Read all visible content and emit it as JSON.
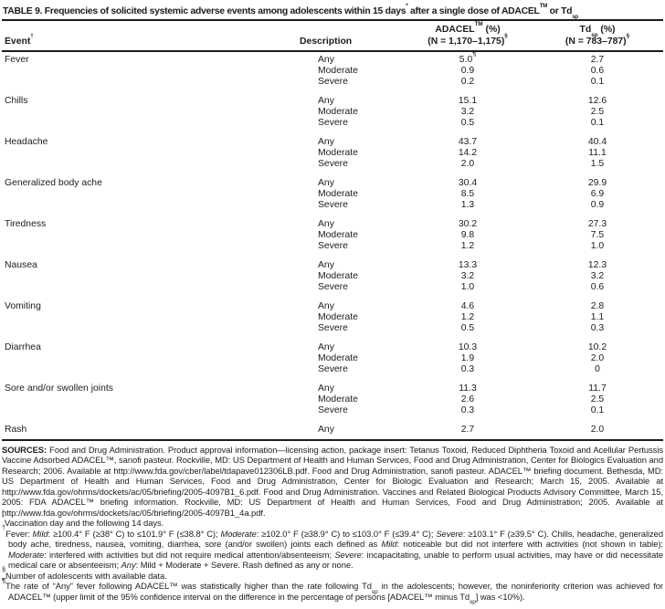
{
  "title": {
    "segments": [
      {
        "t": "TABLE 9. Frequencies of solicited systemic adverse events among adolescents within 15 days"
      },
      {
        "t": "*",
        "sup": true
      },
      {
        "t": " after a single dose of ADACEL"
      },
      {
        "t": "TM",
        "sup": true
      },
      {
        "t": " or Td"
      },
      {
        "t": "sp",
        "sub": true
      }
    ]
  },
  "table": {
    "headers": {
      "event_segments": [
        {
          "t": "Event"
        },
        {
          "t": "†",
          "sup": true
        }
      ],
      "description": "Description",
      "adacel_line1": [
        {
          "t": "ADACEL"
        },
        {
          "t": "TM",
          "sup": true
        },
        {
          "t": " (%)"
        }
      ],
      "adacel_line2": [
        {
          "t": "(N = 1,170–1,175)"
        },
        {
          "t": "§",
          "sup": true
        }
      ],
      "td_line1": [
        {
          "t": "Td"
        },
        {
          "t": "sp",
          "sub": true
        },
        {
          "t": " (%)"
        }
      ],
      "td_line2": [
        {
          "t": "(N = 783–787)"
        },
        {
          "t": "§",
          "sup": true
        }
      ]
    },
    "groups": [
      {
        "event": "Fever",
        "rows": [
          {
            "d": "Any",
            "a": "5.0",
            "asup": "¶",
            "t": "2.7"
          },
          {
            "d": "Moderate",
            "a": "0.9",
            "t": "0.6"
          },
          {
            "d": "Severe",
            "a": "0.2",
            "t": "0.1"
          }
        ]
      },
      {
        "event": "Chills",
        "rows": [
          {
            "d": "Any",
            "a": "15.1",
            "t": "12.6"
          },
          {
            "d": "Moderate",
            "a": "3.2",
            "t": "2.5"
          },
          {
            "d": "Severe",
            "a": "0.5",
            "t": "0.1"
          }
        ]
      },
      {
        "event": "Headache",
        "rows": [
          {
            "d": "Any",
            "a": "43.7",
            "t": "40.4"
          },
          {
            "d": "Moderate",
            "a": "14.2",
            "t": "11.1"
          },
          {
            "d": "Severe",
            "a": "2.0",
            "t": "1.5"
          }
        ]
      },
      {
        "event": "Generalized body ache",
        "rows": [
          {
            "d": "Any",
            "a": "30.4",
            "t": "29.9"
          },
          {
            "d": "Moderate",
            "a": "8.5",
            "t": "6.9"
          },
          {
            "d": "Severe",
            "a": "1.3",
            "t": "0.9"
          }
        ]
      },
      {
        "event": "Tiredness",
        "rows": [
          {
            "d": "Any",
            "a": "30.2",
            "t": "27.3"
          },
          {
            "d": "Moderate",
            "a": "9.8",
            "t": "7.5"
          },
          {
            "d": "Severe",
            "a": "1.2",
            "t": "1.0"
          }
        ]
      },
      {
        "event": "Nausea",
        "rows": [
          {
            "d": "Any",
            "a": "13.3",
            "t": "12.3"
          },
          {
            "d": "Moderate",
            "a": "3.2",
            "t": "3.2"
          },
          {
            "d": "Severe",
            "a": "1.0",
            "t": "0.6"
          }
        ]
      },
      {
        "event": "Vomiting",
        "rows": [
          {
            "d": "Any",
            "a": "4.6",
            "t": "2.8"
          },
          {
            "d": "Moderate",
            "a": "1.2",
            "t": "1.1"
          },
          {
            "d": "Severe",
            "a": "0.5",
            "t": "0.3"
          }
        ]
      },
      {
        "event": "Diarrhea",
        "rows": [
          {
            "d": "Any",
            "a": "10.3",
            "t": "10.2"
          },
          {
            "d": "Moderate",
            "a": "1.9",
            "t": "2.0"
          },
          {
            "d": "Severe",
            "a": "0.3",
            "t": "0"
          }
        ]
      },
      {
        "event": "Sore and/or swollen joints",
        "rows": [
          {
            "d": "Any",
            "a": "11.3",
            "t": "11.7"
          },
          {
            "d": "Moderate",
            "a": "2.6",
            "t": "2.5"
          },
          {
            "d": "Severe",
            "a": "0.3",
            "t": "0.1"
          }
        ]
      },
      {
        "event": "Rash",
        "rows": [
          {
            "d": "Any",
            "a": "2.7",
            "t": "2.0"
          }
        ]
      }
    ]
  },
  "footnotes": [
    {
      "segments": [
        {
          "t": "SOURCES:",
          "b": true
        },
        {
          "t": " Food and Drug Administration. Product approval information—licensing action, package insert: Tetanus Toxoid, Reduced Diphtheria Toxoid and Acellular Pertussis Vaccine Adsorbed ADACEL™, sanofi pasteur. Rockville, MD: US Department of Health and Human Services, Food and Drug Administration, Center for Biologics Evaluation and Research; 2006. Available at http://www.fda.gov/cber/label/tdapave012306LB.pdf. Food and Drug Administration, sanofi pasteur. ADACEL™ briefing document. Bethesda, MD: US Department of Health and Human Services, Food and Drug Administration, Center for Biologic Evaluation and Research; March 15, 2005. Available at http://www.fda.gov/ohrms/dockets/ac/05/briefing/2005-4097B1_6.pdf. Food and Drug Administration. Vaccines and Related Biological Products Advisory Committee, March 15, 2005: FDA ADACEL™ briefing information. Rockville, MD: US Department of Health and Human Services, Food and Drug Administration; 2005. Available at http://www.fda.gov/ohrms/dockets/ac/05/briefing/2005-4097B1_4a.pdf."
        }
      ]
    },
    {
      "segments": [
        {
          "t": "*",
          "sup": true
        },
        {
          "t": "Vaccination day and the following 14 days."
        }
      ]
    },
    {
      "segments": [
        {
          "t": "†",
          "sup": true
        },
        {
          "t": "Fever: "
        },
        {
          "t": "Mild",
          "i": true
        },
        {
          "t": ": ≥100.4° F (≥38° C) to ≤101.9° F (≤38.8° C); "
        },
        {
          "t": "Moderate",
          "i": true
        },
        {
          "t": ": ≥102.0° F (≥38.9° C) to ≤103.0° F (≤39.4° C); "
        },
        {
          "t": "Severe",
          "i": true
        },
        {
          "t": ": ≥103.1° F (≥39.5° C). Chills, headache, generalized body ache, tiredness, nausea, vomiting, diarrhea, sore (and/or swollen) joints each defined as "
        },
        {
          "t": "Mild",
          "i": true
        },
        {
          "t": ": noticeable but did not interfere with activities (not shown in table); "
        },
        {
          "t": "Moderate",
          "i": true
        },
        {
          "t": ": interfered with activities but did not require medical attention/absenteeism; "
        },
        {
          "t": "Severe",
          "i": true
        },
        {
          "t": ": incapacitating, unable to perform usual activities, may have or did necessitate medical care or absenteeism; "
        },
        {
          "t": "Any",
          "i": true
        },
        {
          "t": ": Mild + Moderate + Severe. Rash defined as any or none."
        }
      ]
    },
    {
      "segments": [
        {
          "t": "§",
          "sup": true
        },
        {
          "t": "Number of adolescents with available data."
        }
      ]
    },
    {
      "segments": [
        {
          "t": "¶",
          "sup": true,
          "b": true
        },
        {
          "t": "The rate of “Any” fever following ADACEL™ was statistically higher than the rate following Td"
        },
        {
          "t": "sp",
          "sub": true
        },
        {
          "t": " in the adolescents; however, the noninferiority criterion was achieved for ADACEL™ (upper limit of the 95% confidence interval on the difference in the percentage of persons [ADACEL™ minus Td"
        },
        {
          "t": "sp",
          "sub": true
        },
        {
          "t": "] was <10%)."
        }
      ]
    }
  ]
}
